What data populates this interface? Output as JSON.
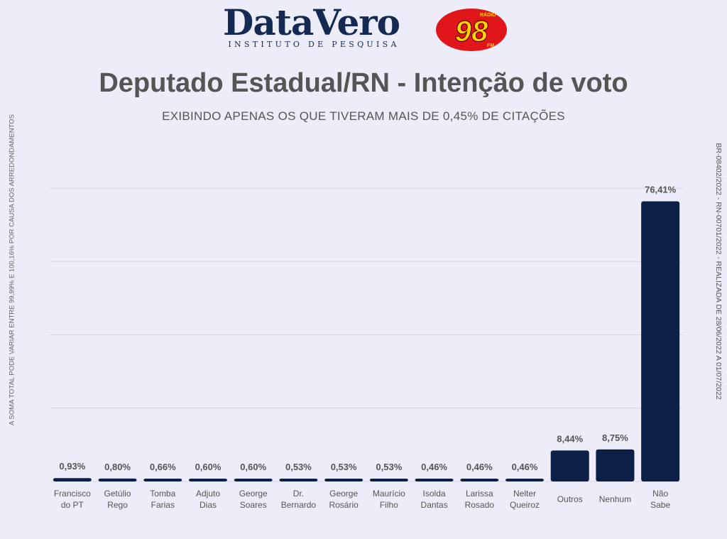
{
  "logo": {
    "brand": "DataVero",
    "tagline": "INSTITUTO DE PESQUISA",
    "radio_small": "RÁDIO",
    "radio_number": "98",
    "radio_fm": "FM"
  },
  "header": {
    "title": "Deputado Estadual/RN - Intenção de voto",
    "subtitle": "EXIBINDO APENAS OS QUE TIVERAM MAIS DE 0,45% DE CITAÇÕES"
  },
  "notes": {
    "left": "A SOMA TOTAL  PODE VARIAR ENTRE 99,99% E 100,16% POR CAUSA DOS ARREDONDAMENTOS",
    "right": "BR-08402/2022 - RN-00701/2022 - REALIZADA DE 28/06/2022 A 01/07/2022"
  },
  "colors": {
    "bar": "#0c1f44",
    "grid": "#d5d7e6",
    "text": "#555555"
  },
  "chart_data": {
    "type": "bar",
    "title": "Deputado Estadual/RN - Intenção de voto",
    "subtitle": "EXIBINDO APENAS OS QUE TIVERAM MAIS DE 0,45% DE CITAÇÕES",
    "categories": [
      [
        "Francisco",
        "do PT"
      ],
      [
        "Getúlio",
        "Rego"
      ],
      [
        "Tomba",
        "Farias"
      ],
      [
        "Adjuto",
        "Dias"
      ],
      [
        "George",
        "Soares"
      ],
      [
        "Dr.",
        "Bernardo"
      ],
      [
        "George",
        "Rosário"
      ],
      [
        "Maurício",
        "Filho"
      ],
      [
        "Isolda",
        "Dantas"
      ],
      [
        "Larissa",
        "Rosado"
      ],
      [
        "Nelter",
        "Queiroz"
      ],
      [
        "Outros"
      ],
      [
        "Nenhum"
      ],
      [
        "Não",
        "Sabe"
      ]
    ],
    "values": [
      0.93,
      0.8,
      0.66,
      0.6,
      0.6,
      0.53,
      0.53,
      0.53,
      0.46,
      0.46,
      0.46,
      8.44,
      8.75,
      76.41
    ],
    "data_labels": [
      "0,93%",
      "0,80%",
      "0,66%",
      "0,60%",
      "0,60%",
      "0,53%",
      "0,53%",
      "0,53%",
      "0,46%",
      "0,46%",
      "0,46%",
      "8,44%",
      "8,75%",
      "76,41%"
    ],
    "ylim": [
      0,
      80
    ],
    "grid": true,
    "legend": "none"
  }
}
